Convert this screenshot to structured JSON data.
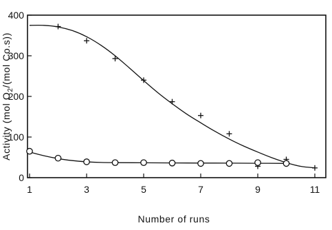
{
  "chart_data": {
    "type": "scatter",
    "title": "",
    "xlabel": "Number of runs",
    "ylabel": "Activity (mol O2/(mol Co.s))",
    "ylabel_parts": {
      "before": "Activity (mol O",
      "sub": "2",
      "after": "/(mol Co.s))"
    },
    "xlim": [
      1,
      11
    ],
    "ylim": [
      0,
      400
    ],
    "x_ticks": [
      1,
      3,
      5,
      7,
      9,
      11
    ],
    "y_ticks": [
      0,
      100,
      200,
      300,
      400
    ],
    "x_tick_labels": [
      "1",
      "3",
      "5",
      "7",
      "9",
      "11"
    ],
    "y_tick_labels": [
      "0",
      "100",
      "200",
      "300",
      "400"
    ],
    "grid": false,
    "legend": "none",
    "series": [
      {
        "marker": "plus",
        "color": "#111111",
        "points": [
          [
            2,
            372
          ],
          [
            3,
            337
          ],
          [
            4,
            293
          ],
          [
            5,
            240
          ],
          [
            6,
            187
          ],
          [
            7,
            153
          ],
          [
            8,
            108
          ],
          [
            9,
            28
          ],
          [
            10,
            45
          ],
          [
            11,
            24
          ]
        ],
        "fit_curve": [
          [
            1,
            375
          ],
          [
            1.5,
            375
          ],
          [
            2,
            371
          ],
          [
            2.5,
            362
          ],
          [
            3,
            347
          ],
          [
            3.5,
            326
          ],
          [
            4,
            300
          ],
          [
            4.5,
            270
          ],
          [
            5,
            239
          ],
          [
            5.5,
            209
          ],
          [
            6,
            182
          ],
          [
            6.5,
            157
          ],
          [
            7,
            135
          ],
          [
            7.5,
            114
          ],
          [
            8,
            95
          ],
          [
            8.5,
            78
          ],
          [
            9,
            63
          ],
          [
            9.5,
            49
          ],
          [
            10,
            37
          ],
          [
            10.5,
            28
          ],
          [
            11,
            24
          ]
        ]
      },
      {
        "marker": "circle",
        "color": "#111111",
        "points": [
          [
            1,
            65
          ],
          [
            2,
            48
          ],
          [
            3,
            39
          ],
          [
            4,
            37
          ],
          [
            5,
            37
          ],
          [
            6,
            36
          ],
          [
            7,
            35
          ],
          [
            8,
            35
          ],
          [
            9,
            37
          ],
          [
            10,
            35
          ]
        ],
        "fit_curve": [
          [
            1,
            63
          ],
          [
            1.5,
            54
          ],
          [
            2,
            47
          ],
          [
            2.5,
            42
          ],
          [
            3,
            39
          ],
          [
            3.5,
            37.5
          ],
          [
            4,
            37
          ],
          [
            5,
            36.6
          ],
          [
            6,
            36.3
          ],
          [
            7,
            36
          ],
          [
            8,
            35.8
          ],
          [
            9,
            35.5
          ],
          [
            10,
            35
          ]
        ]
      }
    ]
  }
}
